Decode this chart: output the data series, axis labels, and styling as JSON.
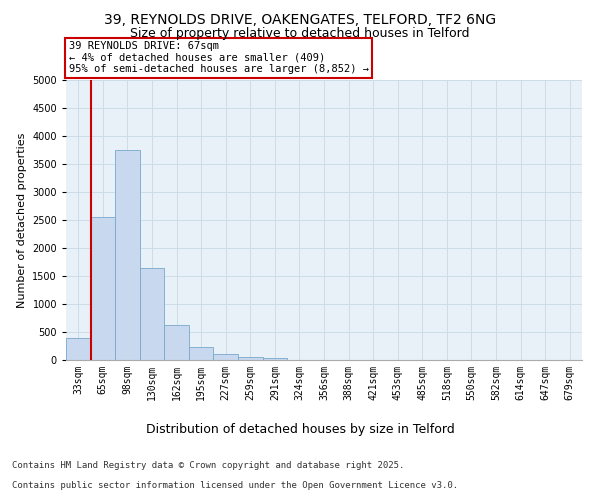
{
  "title_line1": "39, REYNOLDS DRIVE, OAKENGATES, TELFORD, TF2 6NG",
  "title_line2": "Size of property relative to detached houses in Telford",
  "xlabel": "Distribution of detached houses by size in Telford",
  "ylabel": "Number of detached properties",
  "categories": [
    "33sqm",
    "65sqm",
    "98sqm",
    "130sqm",
    "162sqm",
    "195sqm",
    "227sqm",
    "259sqm",
    "291sqm",
    "324sqm",
    "356sqm",
    "388sqm",
    "421sqm",
    "453sqm",
    "485sqm",
    "518sqm",
    "550sqm",
    "582sqm",
    "614sqm",
    "647sqm",
    "679sqm"
  ],
  "values": [
    390,
    2550,
    3750,
    1650,
    620,
    230,
    100,
    55,
    35,
    0,
    0,
    0,
    0,
    0,
    0,
    0,
    0,
    0,
    0,
    0,
    0
  ],
  "bar_color": "#c8d8ee",
  "bar_edge_color": "#7aa8cc",
  "ylim": [
    0,
    5000
  ],
  "yticks": [
    0,
    500,
    1000,
    1500,
    2000,
    2500,
    3000,
    3500,
    4000,
    4500,
    5000
  ],
  "vline_color": "#cc0000",
  "vline_index": 1,
  "annotation_text_line1": "39 REYNOLDS DRIVE: 67sqm",
  "annotation_text_line2": "← 4% of detached houses are smaller (409)",
  "annotation_text_line3": "95% of semi-detached houses are larger (8,852) →",
  "annotation_box_color": "#cc0000",
  "annotation_bg_color": "#ffffff",
  "grid_color": "#ccdde8",
  "background_color": "#e8f0f8",
  "footer_line1": "Contains HM Land Registry data © Crown copyright and database right 2025.",
  "footer_line2": "Contains public sector information licensed under the Open Government Licence v3.0.",
  "title_fontsize": 10,
  "subtitle_fontsize": 9,
  "tick_fontsize": 7,
  "ylabel_fontsize": 8,
  "xlabel_fontsize": 9,
  "annotation_fontsize": 7.5,
  "footer_fontsize": 6.5
}
